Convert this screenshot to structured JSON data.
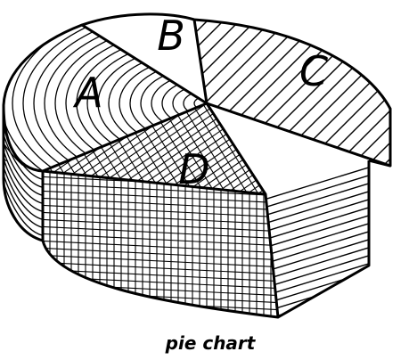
{
  "chart_data": {
    "type": "pie",
    "style": "3d-exploded",
    "caption": "pie chart",
    "slices": [
      {
        "label": "A",
        "value": 0.3,
        "pattern": "concentric-arcs"
      },
      {
        "label": "B",
        "value": 0.09,
        "pattern": "blank"
      },
      {
        "label": "C",
        "value": 0.31,
        "pattern": "diagonal-hatch"
      },
      {
        "label": "D",
        "value": 0.3,
        "pattern": "grid-crosshatch",
        "exploded": true
      }
    ],
    "colors": {
      "ink": "#000000",
      "background": "#ffffff"
    }
  }
}
